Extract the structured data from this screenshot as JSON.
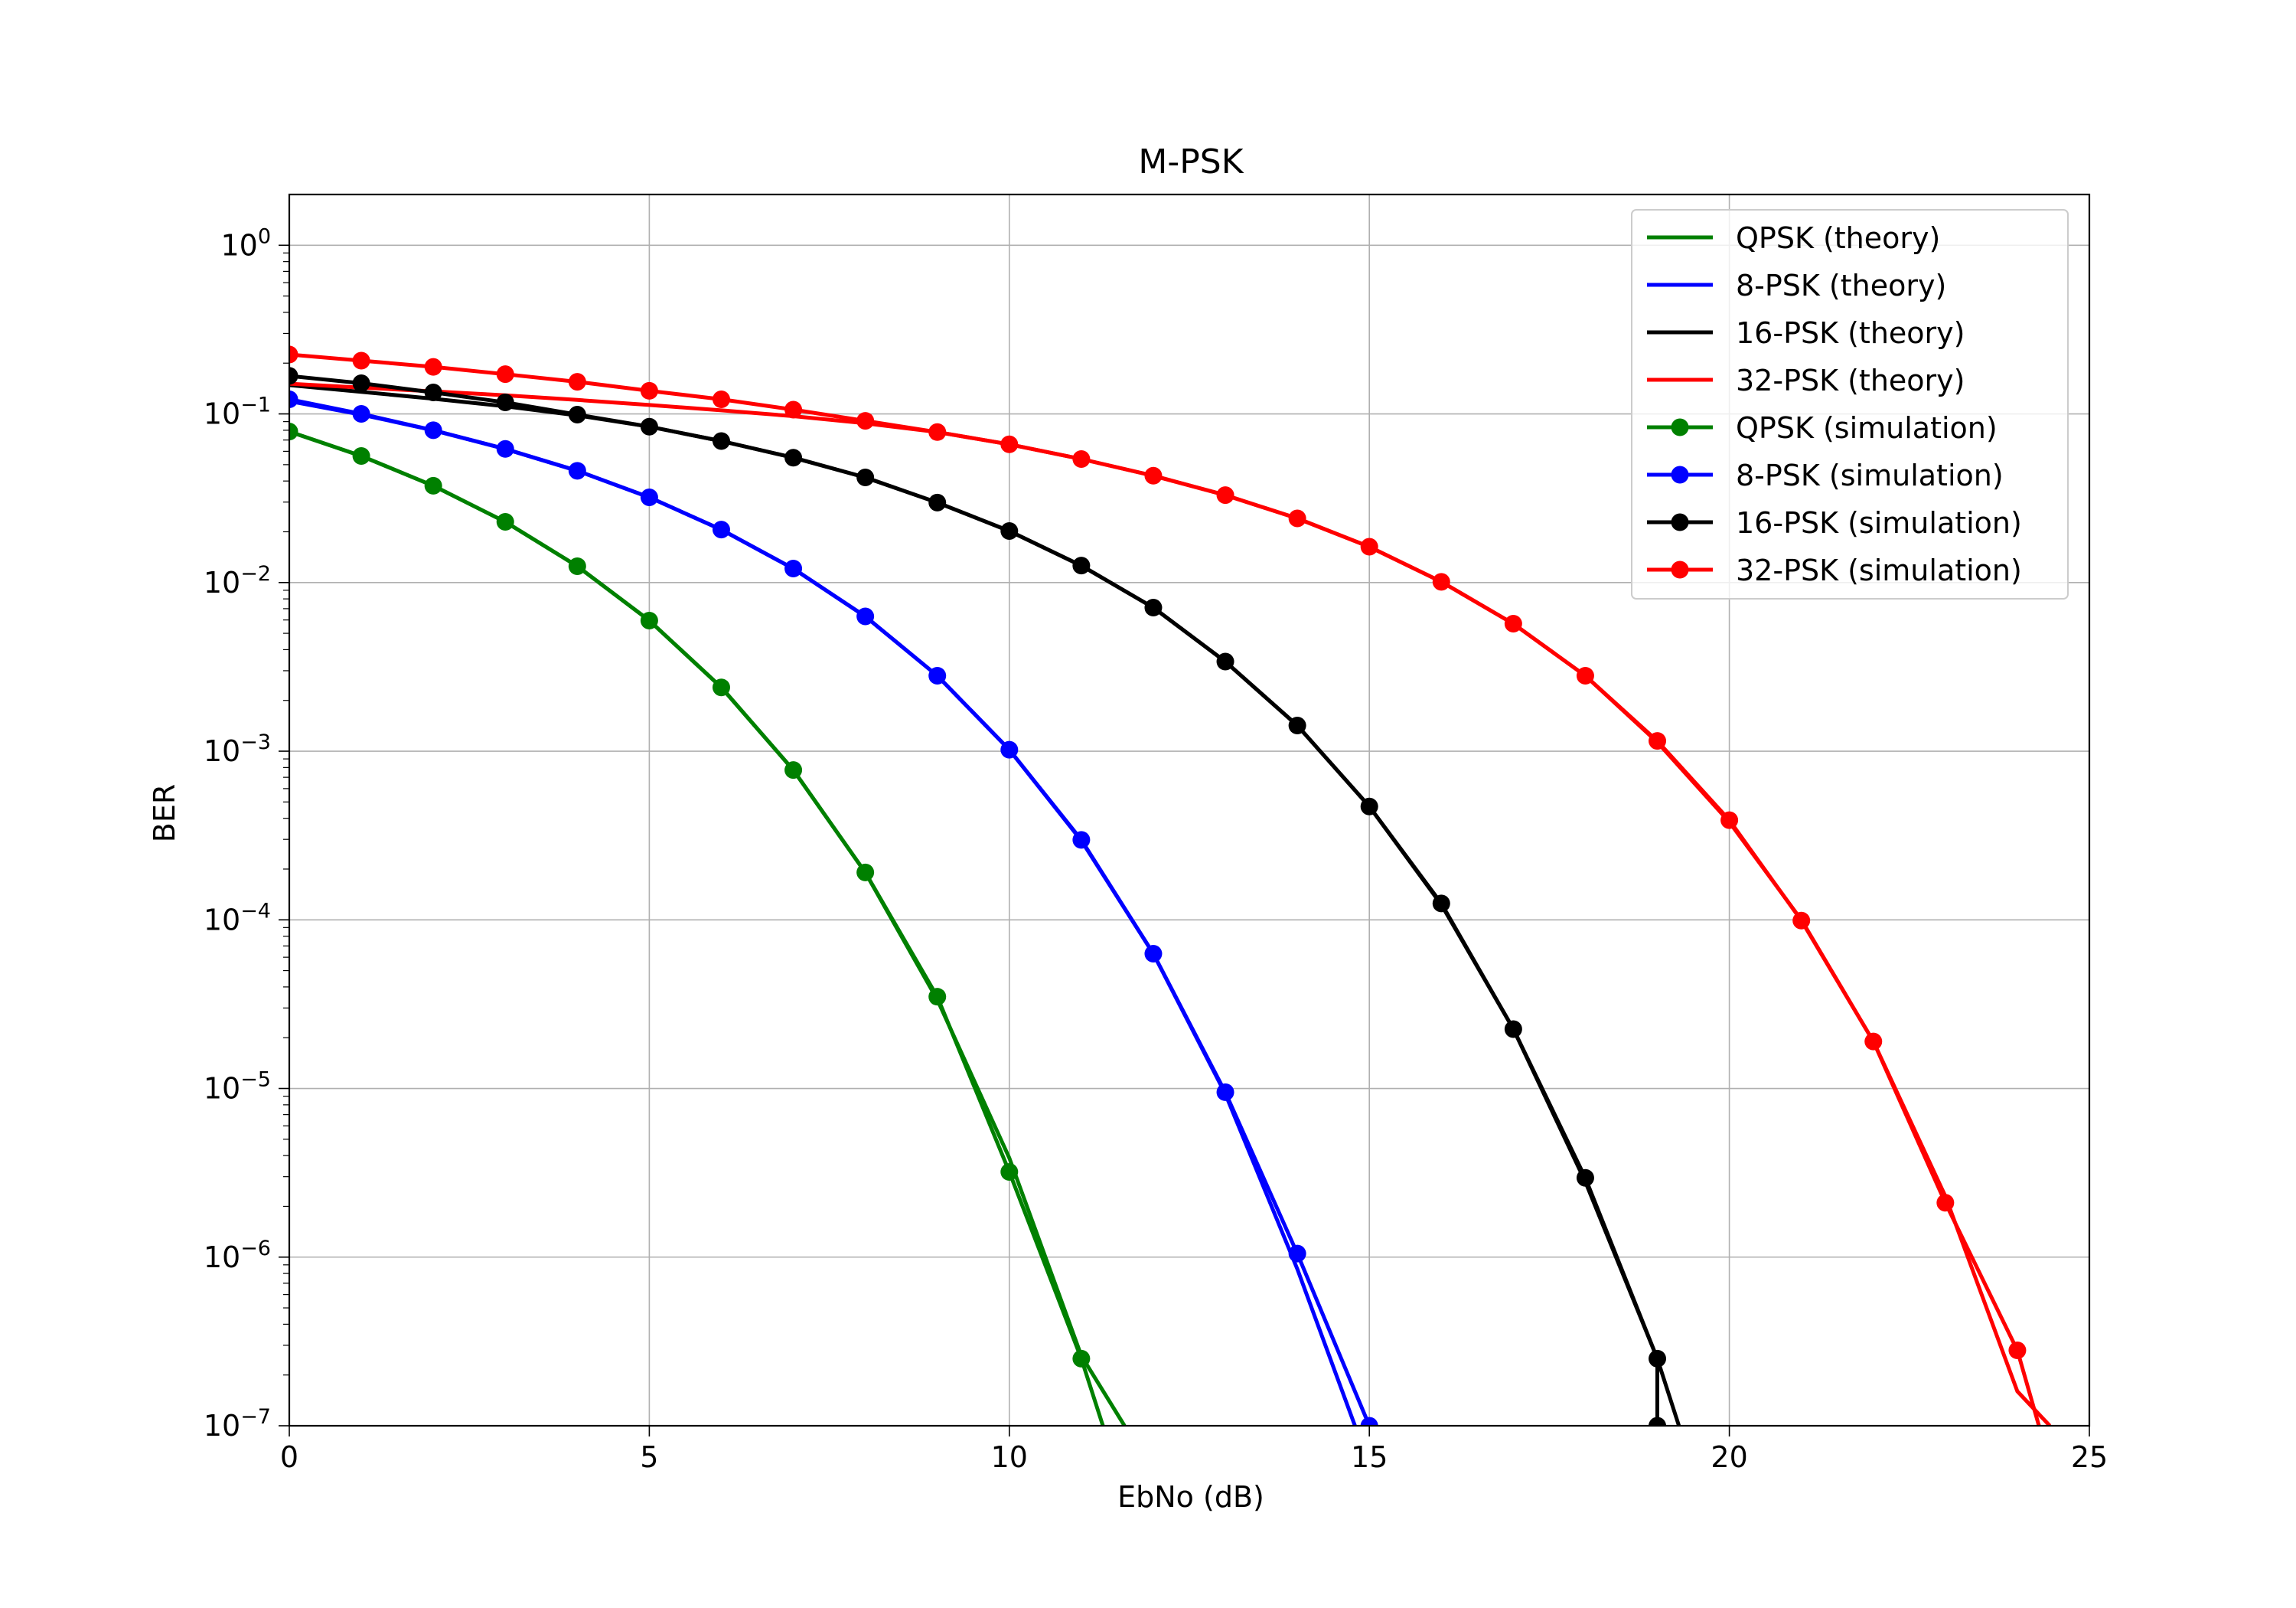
{
  "chart_data": {
    "type": "line",
    "title": "M-PSK",
    "xlabel": "EbNo (dB)",
    "ylabel": "BER",
    "xlim": [
      0,
      25
    ],
    "ylim": [
      1e-07,
      2
    ],
    "yscale": "log",
    "grid": true,
    "legend_position": "top-right",
    "x_ticks": [
      0,
      5,
      10,
      15,
      20,
      25
    ],
    "y_ticks": [
      {
        "value": 1,
        "base": "10",
        "exp": "0"
      },
      {
        "value": 0.1,
        "base": "10",
        "exp": "−1"
      },
      {
        "value": 0.01,
        "base": "10",
        "exp": "−2"
      },
      {
        "value": 0.001,
        "base": "10",
        "exp": "−3"
      },
      {
        "value": 0.0001,
        "base": "10",
        "exp": "−4"
      },
      {
        "value": 1e-05,
        "base": "10",
        "exp": "−5"
      },
      {
        "value": 1e-06,
        "base": "10",
        "exp": "−6"
      },
      {
        "value": 1e-07,
        "base": "10",
        "exp": "−7"
      }
    ],
    "series": [
      {
        "name": "QPSK (theory)",
        "color": "#008000",
        "marker": false,
        "x": [
          0,
          1,
          2,
          3,
          4,
          5,
          6,
          7,
          8,
          9,
          10,
          11,
          11.6
        ],
        "y": [
          0.0786,
          0.0563,
          0.0375,
          0.0229,
          0.0125,
          0.00595,
          0.00239,
          0.000773,
          0.000191,
          3.36e-05,
          3.87e-06,
          2.6e-07,
          1e-07
        ]
      },
      {
        "name": "8-PSK (theory)",
        "color": "#0000ff",
        "marker": false,
        "x": [
          0,
          1,
          2,
          3,
          4,
          5,
          6,
          7,
          8,
          9,
          10,
          11,
          12,
          13,
          14,
          14.8
        ],
        "y": [
          0.119,
          0.099,
          0.08,
          0.062,
          0.046,
          0.032,
          0.0206,
          0.0121,
          0.0063,
          0.0028,
          0.00102,
          0.000295,
          6.3e-05,
          9.3e-06,
          8.5e-07,
          1e-07
        ]
      },
      {
        "name": "16-PSK (theory)",
        "color": "#000000",
        "marker": false,
        "x": [
          0,
          1,
          2,
          3,
          4,
          5,
          6,
          7,
          8,
          9,
          10,
          11,
          12,
          13,
          14,
          15,
          16,
          17,
          18,
          19,
          19.3
        ],
        "y": [
          0.148,
          0.135,
          0.123,
          0.111,
          0.098,
          0.084,
          0.069,
          0.055,
          0.042,
          0.0298,
          0.0202,
          0.0126,
          0.0071,
          0.0034,
          0.00142,
          0.00047,
          0.000123,
          2.25e-05,
          2.8e-06,
          2.5e-07,
          1e-07
        ]
      },
      {
        "name": "32-PSK (theory)",
        "color": "#ff0000",
        "marker": false,
        "x": [
          0,
          1,
          2,
          3,
          4,
          5,
          6,
          7,
          8,
          9,
          10,
          11,
          12,
          13,
          14,
          15,
          16,
          17,
          18,
          19,
          20,
          21,
          22,
          23,
          24,
          24.45
        ],
        "y": [
          0.151,
          0.143,
          0.136,
          0.129,
          0.121,
          0.113,
          0.105,
          0.097,
          0.088,
          0.078,
          0.066,
          0.054,
          0.043,
          0.033,
          0.024,
          0.0163,
          0.0101,
          0.0057,
          0.0028,
          0.00113,
          0.00038,
          0.0001,
          1.9e-05,
          2.3e-06,
          1.6e-07,
          1e-07
        ]
      },
      {
        "name": "QPSK (simulation)",
        "color": "#008000",
        "marker": true,
        "x": [
          0,
          1,
          2,
          3,
          4,
          5,
          6,
          7,
          8,
          9,
          10,
          11,
          11.3
        ],
        "y": [
          0.0786,
          0.0563,
          0.0375,
          0.0229,
          0.0125,
          0.00595,
          0.00239,
          0.000773,
          0.000191,
          3.5e-05,
          3.2e-06,
          2.5e-07,
          1e-07
        ]
      },
      {
        "name": "8-PSK (simulation)",
        "color": "#0000ff",
        "marker": true,
        "x": [
          0,
          1,
          2,
          3,
          4,
          5,
          6,
          7,
          8,
          9,
          10,
          11,
          12,
          13,
          14,
          15
        ],
        "y": [
          0.122,
          0.1,
          0.08,
          0.062,
          0.046,
          0.032,
          0.0206,
          0.0121,
          0.0063,
          0.0028,
          0.00102,
          0.000298,
          6.3e-05,
          9.5e-06,
          1.05e-06,
          1e-07
        ]
      },
      {
        "name": "16-PSK (simulation)",
        "color": "#000000",
        "marker": true,
        "x": [
          0,
          1,
          2,
          3,
          4,
          5,
          6,
          7,
          8,
          9,
          10,
          11,
          12,
          13,
          14,
          15,
          16,
          17,
          18,
          19,
          19
        ],
        "y": [
          0.168,
          0.152,
          0.134,
          0.117,
          0.099,
          0.084,
          0.069,
          0.055,
          0.042,
          0.0298,
          0.0202,
          0.0126,
          0.0071,
          0.0034,
          0.00142,
          0.00047,
          0.000125,
          2.25e-05,
          2.95e-06,
          2.5e-07,
          1e-07
        ]
      },
      {
        "name": "32-PSK (simulation)",
        "color": "#ff0000",
        "marker": true,
        "x": [
          0,
          1,
          2,
          3,
          4,
          5,
          6,
          7,
          8,
          9,
          10,
          11,
          12,
          13,
          14,
          15,
          16,
          17,
          18,
          19,
          20,
          21,
          22,
          23,
          24,
          24.3
        ],
        "y": [
          0.225,
          0.207,
          0.19,
          0.172,
          0.155,
          0.137,
          0.122,
          0.106,
          0.091,
          0.078,
          0.066,
          0.054,
          0.043,
          0.033,
          0.024,
          0.0163,
          0.0101,
          0.0057,
          0.0028,
          0.00115,
          0.00039,
          9.9e-05,
          1.9e-05,
          2.1e-06,
          2.8e-07,
          1e-07
        ]
      }
    ]
  }
}
